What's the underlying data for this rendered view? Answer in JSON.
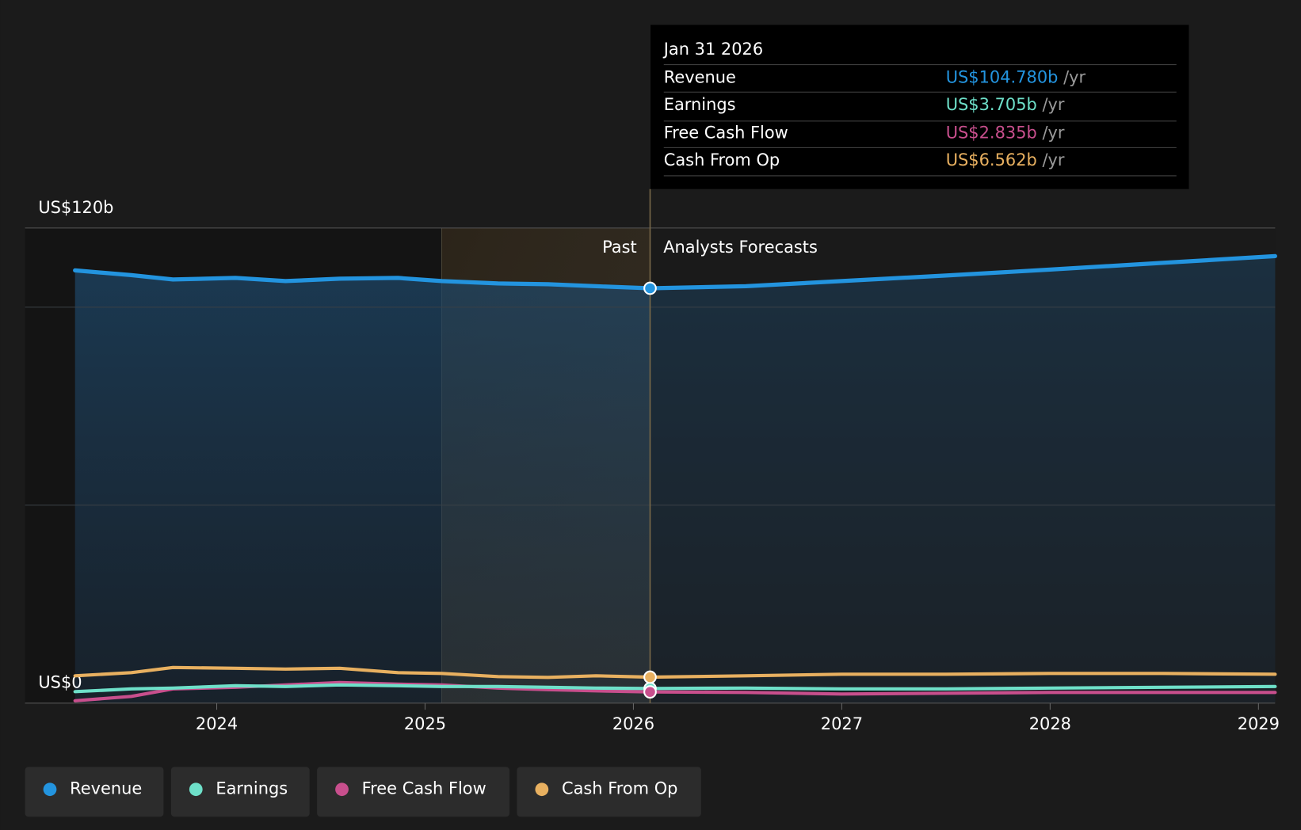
{
  "chart_data": {
    "type": "line",
    "x": [
      2023.32,
      2023.59,
      2023.79,
      2024.09,
      2024.33,
      2024.59,
      2024.87,
      2025.08,
      2025.35,
      2025.59,
      2025.82,
      2026.08,
      2026.54,
      2027.0,
      2027.5,
      2028.0,
      2028.54,
      2029.08
    ],
    "series": [
      {
        "name": "Revenue",
        "color": "#2394df",
        "values": [
          109.3,
          108.1,
          107.0,
          107.4,
          106.6,
          107.2,
          107.4,
          106.6,
          106.0,
          105.8,
          105.3,
          104.78,
          105.3,
          106.6,
          108.0,
          109.5,
          111.2,
          112.9
        ]
      },
      {
        "name": "Earnings",
        "color": "#6ee0c9",
        "values": [
          2.9,
          3.6,
          3.8,
          4.4,
          4.2,
          4.6,
          4.4,
          4.2,
          4.2,
          4.0,
          3.8,
          3.705,
          3.8,
          3.6,
          3.6,
          3.8,
          4.0,
          4.2
        ]
      },
      {
        "name": "Free Cash Flow",
        "color": "#c84f8d",
        "values": [
          0.6,
          1.7,
          3.6,
          4.0,
          4.6,
          5.2,
          4.8,
          4.6,
          3.8,
          3.4,
          3.1,
          2.835,
          2.7,
          2.3,
          2.5,
          2.7,
          2.7,
          2.7
        ]
      },
      {
        "name": "Cash From Op",
        "color": "#e8b060",
        "values": [
          6.9,
          7.7,
          9.0,
          8.8,
          8.6,
          8.8,
          7.7,
          7.5,
          6.7,
          6.5,
          6.9,
          6.562,
          6.9,
          7.3,
          7.3,
          7.5,
          7.5,
          7.3
        ]
      }
    ],
    "xlim": [
      2023.08,
      2029.08
    ],
    "xticks": [
      2024,
      2025,
      2026,
      2027,
      2028,
      2029
    ],
    "ylim": [
      0,
      120
    ],
    "yticks": [
      {
        "value": 0,
        "label": "US$0"
      },
      {
        "value": 120,
        "label": "US$120b"
      }
    ],
    "grid_lines": [
      50,
      100
    ],
    "past_range": [
      2025.08,
      2026.08
    ],
    "past_label": "Past",
    "forecast_label": "Analysts Forecasts",
    "tooltip": {
      "title": "Jan 31 2026",
      "index": 11,
      "value_labels": [
        "US$104.780b",
        "US$3.705b",
        "US$2.835b",
        "US$6.562b"
      ],
      "unit": "/yr"
    },
    "legend": "bottom-left"
  }
}
